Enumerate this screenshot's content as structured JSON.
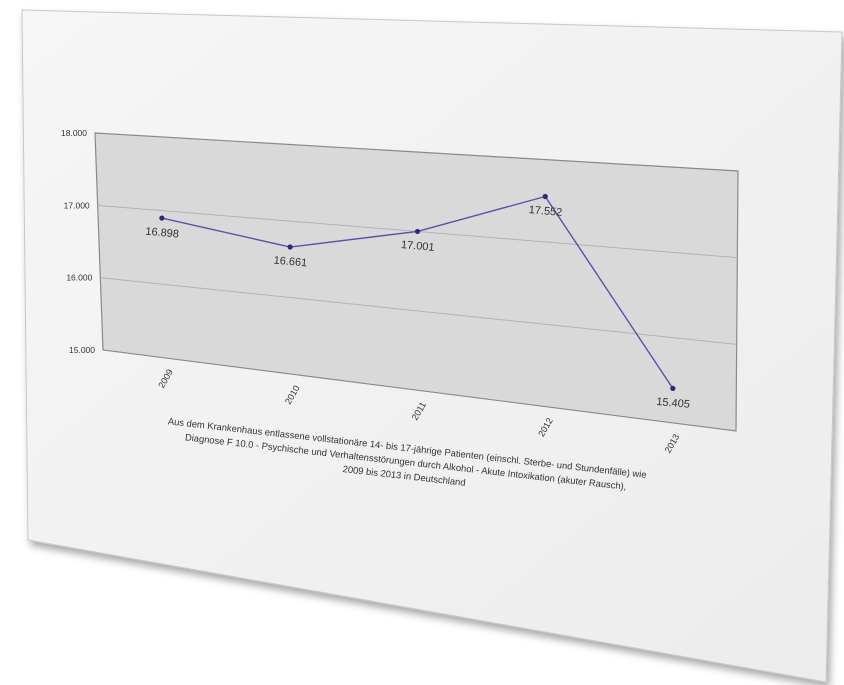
{
  "chart_data": {
    "type": "line",
    "categories": [
      "2009",
      "2010",
      "2011",
      "2012",
      "2013"
    ],
    "series": [
      {
        "values": [
          16898,
          16661,
          17001,
          17552,
          15405
        ]
      }
    ],
    "data_labels": [
      "16.898",
      "16.661",
      "17.001",
      "17.552",
      "15.405"
    ],
    "yticks": [
      "18.000",
      "17.000",
      "16.000",
      "15.000"
    ],
    "ylim": [
      15000,
      18000
    ],
    "grid": true,
    "caption_lines": [
      "Aus dem Krankenhaus entlassene vollstationäre 14- bis 17-jährige Patienten (einschl. Sterbe- und Stundenfälle) wie",
      "Diagnose F 10.0 - Psychische und Verhaltensstörungen durch Alkohol - Akute Intoxikation (akuter Rausch),",
      "2009 bis 2013 in Deutschland"
    ],
    "colors": {
      "line": "#5454a8",
      "plot_bg": "#d9d9d9",
      "frame_bg": "#f2f2f2"
    }
  }
}
